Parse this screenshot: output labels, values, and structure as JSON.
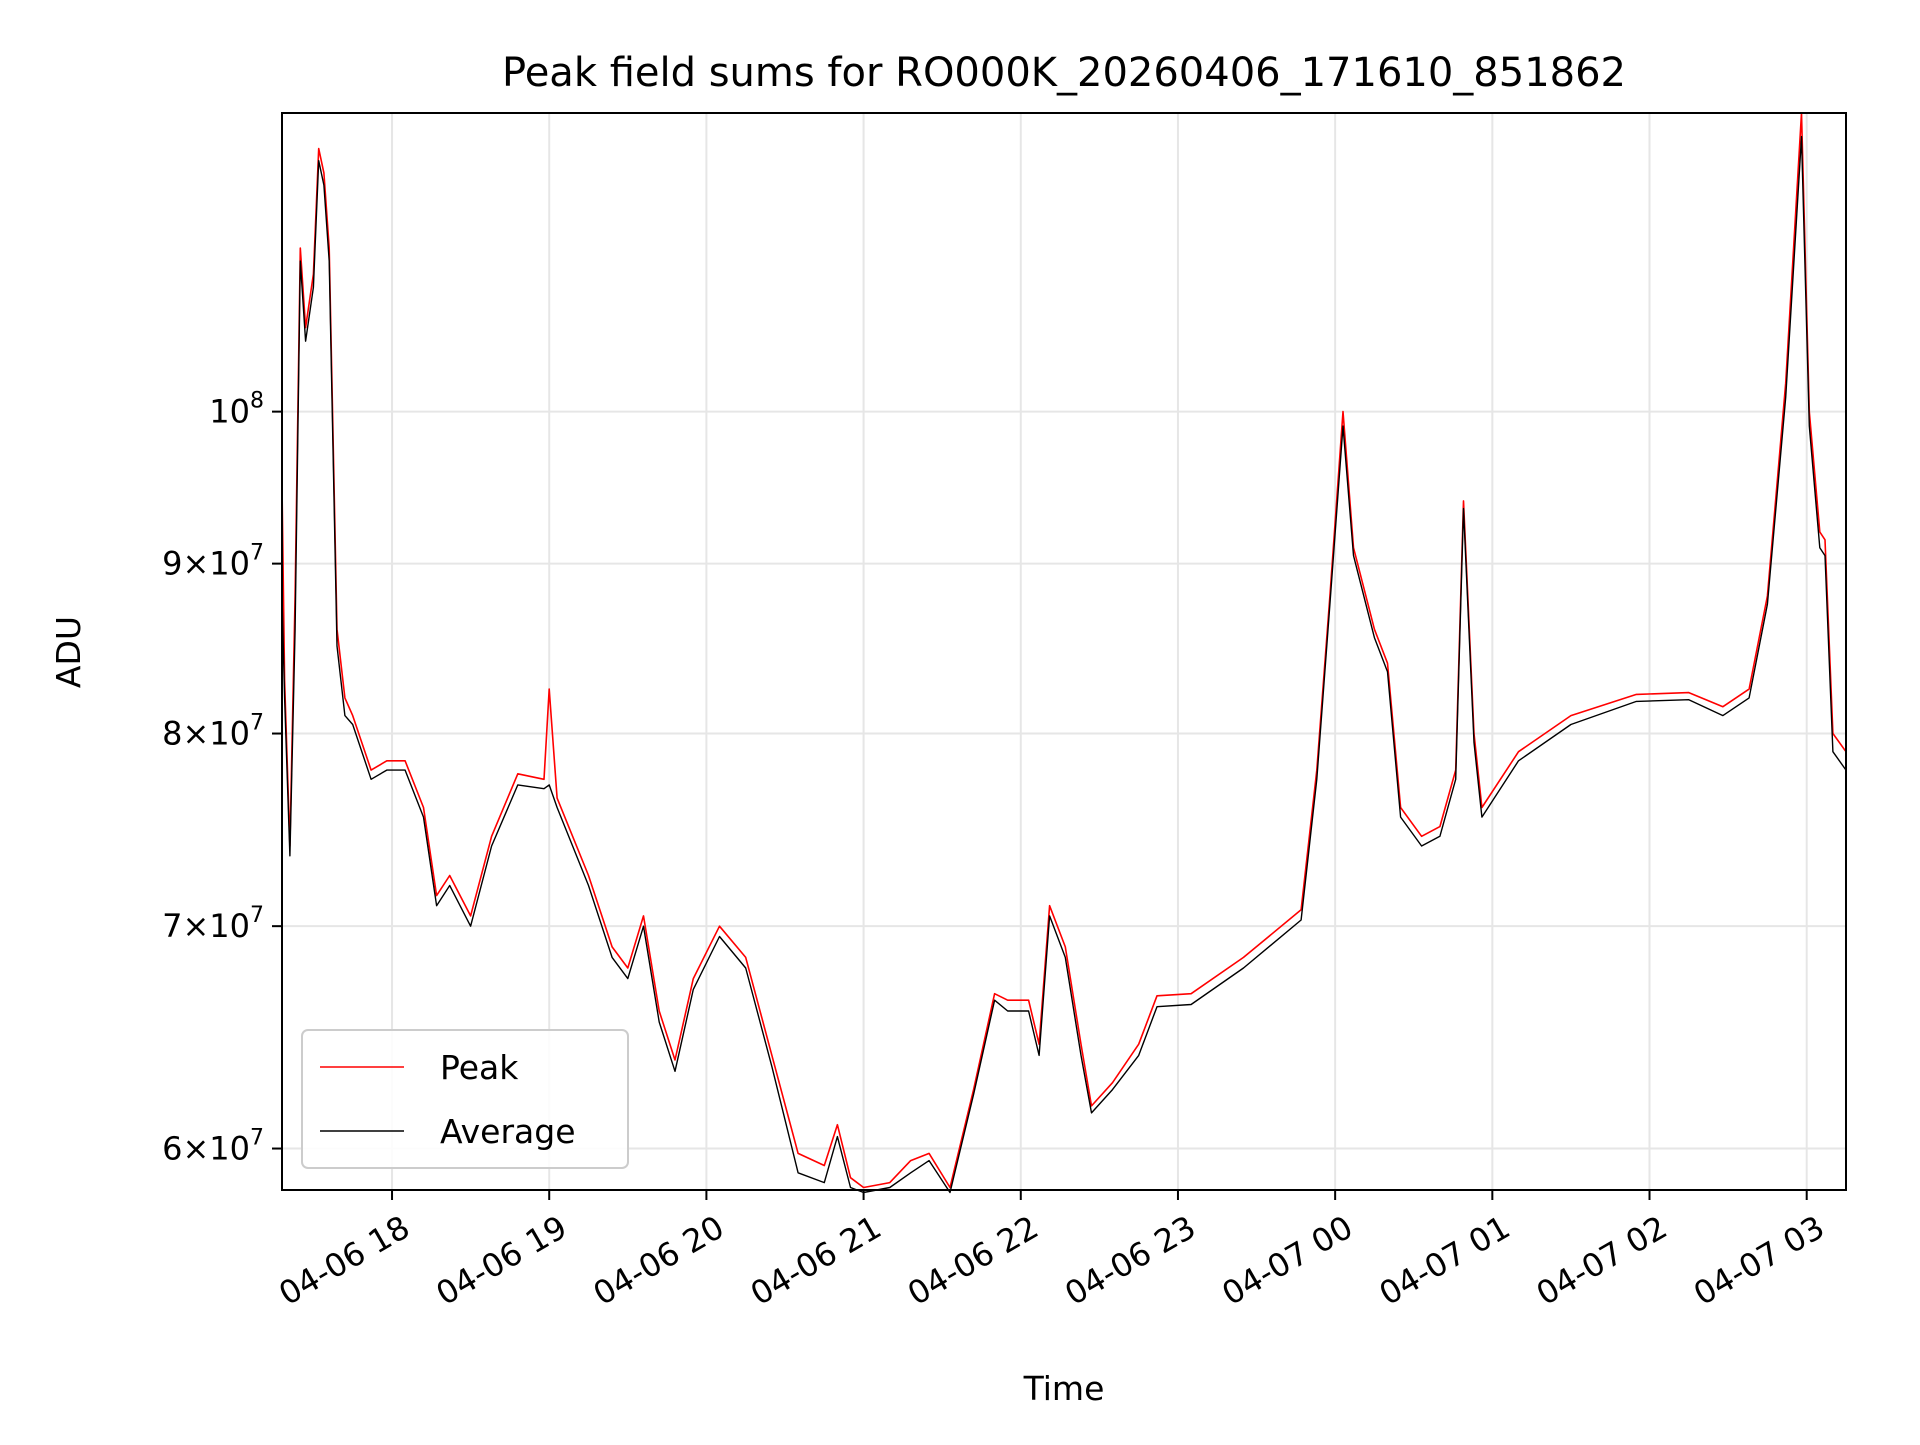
{
  "chart_data": {
    "type": "line",
    "title": "Peak field sums for RO000K_20260406_171610_851862",
    "xlabel": "Time",
    "ylabel": "ADU",
    "yscale": "log",
    "grid": true,
    "legend_position": "lower-left",
    "xlim": [
      "2026-04-06 17:18",
      "2026-04-07 03:15"
    ],
    "ylim": [
      58300000,
      123000000
    ],
    "x_ticks": [
      {
        "value": "2026-04-06 18:00",
        "label": "04-06 18"
      },
      {
        "value": "2026-04-06 19:00",
        "label": "04-06 19"
      },
      {
        "value": "2026-04-06 20:00",
        "label": "04-06 20"
      },
      {
        "value": "2026-04-06 21:00",
        "label": "04-06 21"
      },
      {
        "value": "2026-04-06 22:00",
        "label": "04-06 22"
      },
      {
        "value": "2026-04-06 23:00",
        "label": "04-06 23"
      },
      {
        "value": "2026-04-07 00:00",
        "label": "04-07 00"
      },
      {
        "value": "2026-04-07 01:00",
        "label": "04-07 01"
      },
      {
        "value": "2026-04-07 02:00",
        "label": "04-07 02"
      },
      {
        "value": "2026-04-07 03:00",
        "label": "04-07 03"
      }
    ],
    "y_ticks": [
      {
        "value": 60000000,
        "mant": "6",
        "exp": "7"
      },
      {
        "value": 70000000,
        "mant": "7",
        "exp": "7"
      },
      {
        "value": 80000000,
        "mant": "8",
        "exp": "7"
      },
      {
        "value": 90000000,
        "mant": "9",
        "exp": "7"
      },
      {
        "value": 100000000,
        "mant": "",
        "exp": "8"
      }
    ],
    "y_tick_base": "10",
    "y_tick_times": "×",
    "series": [
      {
        "name": "Peak",
        "color": "#ff0000",
        "points": [
          [
            "2026-04-06 17:18",
            95000000
          ],
          [
            "2026-04-06 17:19",
            83000000
          ],
          [
            "2026-04-06 17:21",
            74000000
          ],
          [
            "2026-04-06 17:23",
            88000000
          ],
          [
            "2026-04-06 17:25",
            112000000
          ],
          [
            "2026-04-06 17:27",
            106000000
          ],
          [
            "2026-04-06 17:30",
            110000000
          ],
          [
            "2026-04-06 17:32",
            120000000
          ],
          [
            "2026-04-06 17:34",
            118000000
          ],
          [
            "2026-04-06 17:36",
            112000000
          ],
          [
            "2026-04-06 17:39",
            86000000
          ],
          [
            "2026-04-06 17:42",
            82000000
          ],
          [
            "2026-04-06 17:45",
            81000000
          ],
          [
            "2026-04-06 17:52",
            78000000
          ],
          [
            "2026-04-06 17:58",
            78500000
          ],
          [
            "2026-04-06 18:05",
            78500000
          ],
          [
            "2026-04-06 18:12",
            76000000
          ],
          [
            "2026-04-06 18:17",
            71500000
          ],
          [
            "2026-04-06 18:22",
            72500000
          ],
          [
            "2026-04-06 18:30",
            70500000
          ],
          [
            "2026-04-06 18:38",
            74500000
          ],
          [
            "2026-04-06 18:48",
            77800000
          ],
          [
            "2026-04-06 18:58",
            77500000
          ],
          [
            "2026-04-06 19:00",
            82500000
          ],
          [
            "2026-04-06 19:03",
            76500000
          ],
          [
            "2026-04-06 19:15",
            72500000
          ],
          [
            "2026-04-06 19:24",
            69000000
          ],
          [
            "2026-04-06 19:30",
            68000000
          ],
          [
            "2026-04-06 19:36",
            70500000
          ],
          [
            "2026-04-06 19:42",
            66000000
          ],
          [
            "2026-04-06 19:48",
            63800000
          ],
          [
            "2026-04-06 19:55",
            67500000
          ],
          [
            "2026-04-06 20:05",
            70000000
          ],
          [
            "2026-04-06 20:15",
            68500000
          ],
          [
            "2026-04-06 20:25",
            64000000
          ],
          [
            "2026-04-06 20:35",
            59800000
          ],
          [
            "2026-04-06 20:45",
            59300000
          ],
          [
            "2026-04-06 20:50",
            61000000
          ],
          [
            "2026-04-06 20:55",
            58800000
          ],
          [
            "2026-04-06 21:00",
            58400000
          ],
          [
            "2026-04-06 21:10",
            58600000
          ],
          [
            "2026-04-06 21:18",
            59500000
          ],
          [
            "2026-04-06 21:25",
            59800000
          ],
          [
            "2026-04-06 21:33",
            58400000
          ],
          [
            "2026-04-06 21:42",
            62500000
          ],
          [
            "2026-04-06 21:50",
            66800000
          ],
          [
            "2026-04-06 21:55",
            66500000
          ],
          [
            "2026-04-06 22:03",
            66500000
          ],
          [
            "2026-04-06 22:07",
            64500000
          ],
          [
            "2026-04-06 22:11",
            71000000
          ],
          [
            "2026-04-06 22:17",
            69000000
          ],
          [
            "2026-04-06 22:23",
            64500000
          ],
          [
            "2026-04-06 22:27",
            61800000
          ],
          [
            "2026-04-06 22:35",
            62800000
          ],
          [
            "2026-04-06 22:45",
            64500000
          ],
          [
            "2026-04-06 22:52",
            66700000
          ],
          [
            "2026-04-06 23:05",
            66800000
          ],
          [
            "2026-04-06 23:25",
            68500000
          ],
          [
            "2026-04-06 23:47",
            70800000
          ],
          [
            "2026-04-06 23:53",
            78000000
          ],
          [
            "2026-04-06 23:58",
            88000000
          ],
          [
            "2026-04-07 00:03",
            100000000
          ],
          [
            "2026-04-07 00:07",
            91000000
          ],
          [
            "2026-04-07 00:15",
            86000000
          ],
          [
            "2026-04-07 00:20",
            84000000
          ],
          [
            "2026-04-07 00:25",
            76000000
          ],
          [
            "2026-04-07 00:33",
            74500000
          ],
          [
            "2026-04-07 00:40",
            75000000
          ],
          [
            "2026-04-07 00:46",
            78000000
          ],
          [
            "2026-04-07 00:49",
            94000000
          ],
          [
            "2026-04-07 00:53",
            80000000
          ],
          [
            "2026-04-07 00:56",
            76000000
          ],
          [
            "2026-04-07 01:10",
            79000000
          ],
          [
            "2026-04-07 01:30",
            81000000
          ],
          [
            "2026-04-07 01:55",
            82200000
          ],
          [
            "2026-04-07 02:15",
            82300000
          ],
          [
            "2026-04-07 02:28",
            81500000
          ],
          [
            "2026-04-07 02:38",
            82500000
          ],
          [
            "2026-04-07 02:45",
            88000000
          ],
          [
            "2026-04-07 02:52",
            102000000
          ],
          [
            "2026-04-07 02:58",
            123000000
          ],
          [
            "2026-04-07 03:01",
            100000000
          ],
          [
            "2026-04-07 03:05",
            92000000
          ],
          [
            "2026-04-07 03:07",
            91500000
          ],
          [
            "2026-04-07 03:10",
            80000000
          ],
          [
            "2026-04-07 03:15",
            79000000
          ]
        ]
      },
      {
        "name": "Average",
        "color": "#000000",
        "points": [
          [
            "2026-04-06 17:18",
            88000000
          ],
          [
            "2026-04-06 17:19",
            82000000
          ],
          [
            "2026-04-06 17:21",
            73500000
          ],
          [
            "2026-04-06 17:23",
            86000000
          ],
          [
            "2026-04-06 17:25",
            111000000
          ],
          [
            "2026-04-06 17:27",
            105000000
          ],
          [
            "2026-04-06 17:30",
            109000000
          ],
          [
            "2026-04-06 17:32",
            119000000
          ],
          [
            "2026-04-06 17:34",
            117000000
          ],
          [
            "2026-04-06 17:36",
            111000000
          ],
          [
            "2026-04-06 17:39",
            85000000
          ],
          [
            "2026-04-06 17:42",
            81000000
          ],
          [
            "2026-04-06 17:45",
            80500000
          ],
          [
            "2026-04-06 17:52",
            77500000
          ],
          [
            "2026-04-06 17:58",
            78000000
          ],
          [
            "2026-04-06 18:05",
            78000000
          ],
          [
            "2026-04-06 18:12",
            75500000
          ],
          [
            "2026-04-06 18:17",
            71000000
          ],
          [
            "2026-04-06 18:22",
            72000000
          ],
          [
            "2026-04-06 18:30",
            70000000
          ],
          [
            "2026-04-06 18:38",
            74000000
          ],
          [
            "2026-04-06 18:48",
            77200000
          ],
          [
            "2026-04-06 18:58",
            77000000
          ],
          [
            "2026-04-06 19:00",
            77200000
          ],
          [
            "2026-04-06 19:03",
            76000000
          ],
          [
            "2026-04-06 19:15",
            72000000
          ],
          [
            "2026-04-06 19:24",
            68500000
          ],
          [
            "2026-04-06 19:30",
            67500000
          ],
          [
            "2026-04-06 19:36",
            70000000
          ],
          [
            "2026-04-06 19:42",
            65500000
          ],
          [
            "2026-04-06 19:48",
            63300000
          ],
          [
            "2026-04-06 19:55",
            67000000
          ],
          [
            "2026-04-06 20:05",
            69500000
          ],
          [
            "2026-04-06 20:15",
            68000000
          ],
          [
            "2026-04-06 20:25",
            63500000
          ],
          [
            "2026-04-06 20:35",
            59000000
          ],
          [
            "2026-04-06 20:45",
            58600000
          ],
          [
            "2026-04-06 20:50",
            60500000
          ],
          [
            "2026-04-06 20:55",
            58400000
          ],
          [
            "2026-04-06 21:00",
            58200000
          ],
          [
            "2026-04-06 21:10",
            58400000
          ],
          [
            "2026-04-06 21:18",
            59000000
          ],
          [
            "2026-04-06 21:25",
            59500000
          ],
          [
            "2026-04-06 21:33",
            58200000
          ],
          [
            "2026-04-06 21:42",
            62300000
          ],
          [
            "2026-04-06 21:50",
            66500000
          ],
          [
            "2026-04-06 21:55",
            66000000
          ],
          [
            "2026-04-06 22:03",
            66000000
          ],
          [
            "2026-04-06 22:07",
            64000000
          ],
          [
            "2026-04-06 22:11",
            70500000
          ],
          [
            "2026-04-06 22:17",
            68500000
          ],
          [
            "2026-04-06 22:23",
            64000000
          ],
          [
            "2026-04-06 22:27",
            61500000
          ],
          [
            "2026-04-06 22:35",
            62500000
          ],
          [
            "2026-04-06 22:45",
            64000000
          ],
          [
            "2026-04-06 22:52",
            66200000
          ],
          [
            "2026-04-06 23:05",
            66300000
          ],
          [
            "2026-04-06 23:25",
            68000000
          ],
          [
            "2026-04-06 23:47",
            70300000
          ],
          [
            "2026-04-06 23:53",
            77500000
          ],
          [
            "2026-04-06 23:58",
            87500000
          ],
          [
            "2026-04-07 00:03",
            99000000
          ],
          [
            "2026-04-07 00:07",
            90500000
          ],
          [
            "2026-04-07 00:15",
            85500000
          ],
          [
            "2026-04-07 00:20",
            83500000
          ],
          [
            "2026-04-07 00:25",
            75500000
          ],
          [
            "2026-04-07 00:33",
            74000000
          ],
          [
            "2026-04-07 00:40",
            74500000
          ],
          [
            "2026-04-07 00:46",
            77500000
          ],
          [
            "2026-04-07 00:49",
            93500000
          ],
          [
            "2026-04-07 00:53",
            79500000
          ],
          [
            "2026-04-07 00:56",
            75500000
          ],
          [
            "2026-04-07 01:10",
            78500000
          ],
          [
            "2026-04-07 01:30",
            80500000
          ],
          [
            "2026-04-07 01:55",
            81800000
          ],
          [
            "2026-04-07 02:15",
            81900000
          ],
          [
            "2026-04-07 02:28",
            81000000
          ],
          [
            "2026-04-07 02:38",
            82000000
          ],
          [
            "2026-04-07 02:45",
            87500000
          ],
          [
            "2026-04-07 02:52",
            101000000
          ],
          [
            "2026-04-07 02:58",
            121000000
          ],
          [
            "2026-04-07 03:01",
            99000000
          ],
          [
            "2026-04-07 03:05",
            91000000
          ],
          [
            "2026-04-07 03:07",
            90500000
          ],
          [
            "2026-04-07 03:10",
            79000000
          ],
          [
            "2026-04-07 03:15",
            78000000
          ]
        ]
      }
    ]
  }
}
